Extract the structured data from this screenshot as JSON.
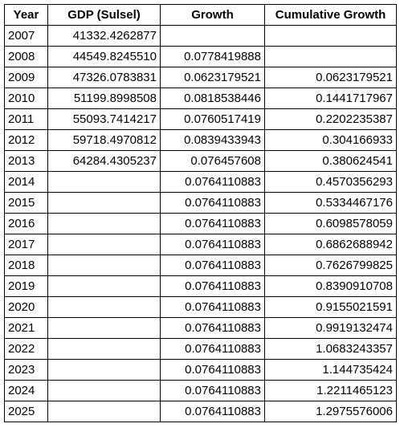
{
  "table": {
    "headers": [
      "Year",
      "GDP (Sulsel)",
      "Growth",
      "Cumulative Growth"
    ],
    "rows": [
      [
        "2007",
        "41332.4262877",
        "",
        ""
      ],
      [
        "2008",
        "44549.8245510",
        "0.0778419888",
        ""
      ],
      [
        "2009",
        "47326.0783831",
        "0.0623179521",
        "0.0623179521"
      ],
      [
        "2010",
        "51199.8998508",
        "0.0818538446",
        "0.1441717967"
      ],
      [
        "2011",
        "55093.7414217",
        "0.0760517419",
        "0.2202235387"
      ],
      [
        "2012",
        "59718.4970812",
        "0.0839433943",
        "0.304166933"
      ],
      [
        "2013",
        "64284.4305237",
        "0.076457608",
        "0.380624541"
      ],
      [
        "2014",
        "",
        "0.0764110883",
        "0.4570356293"
      ],
      [
        "2015",
        "",
        "0.0764110883",
        "0.5334467176"
      ],
      [
        "2016",
        "",
        "0.0764110883",
        "0.6098578059"
      ],
      [
        "2017",
        "",
        "0.0764110883",
        "0.6862688942"
      ],
      [
        "2018",
        "",
        "0.0764110883",
        "0.7626799825"
      ],
      [
        "2019",
        "",
        "0.0764110883",
        "0.8390910708"
      ],
      [
        "2020",
        "",
        "0.0764110883",
        "0.9155021591"
      ],
      [
        "2021",
        "",
        "0.0764110883",
        "0.9919132474"
      ],
      [
        "2022",
        "",
        "0.0764110883",
        "1.0683243357"
      ],
      [
        "2023",
        "",
        "0.0764110883",
        "1.144735424"
      ],
      [
        "2024",
        "",
        "0.0764110883",
        "1.2211465123"
      ],
      [
        "2025",
        "",
        "0.0764110883",
        "1.2975576006"
      ]
    ]
  }
}
